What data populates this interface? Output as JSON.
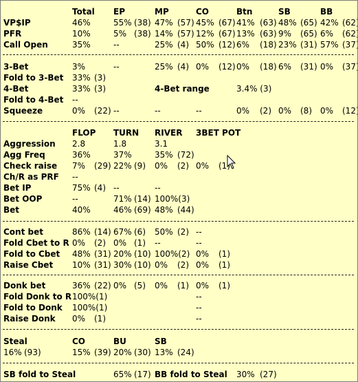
{
  "header": {
    "title": "Total",
    "positions": [
      "EP",
      "MP",
      "CO",
      "Btn",
      "SB",
      "BB"
    ]
  },
  "section1": {
    "rows": [
      {
        "label": "VP$IP",
        "total": "46%",
        "cells": [
          "55%",
          "(38)",
          "47%",
          "(57)",
          "45%",
          "(67)",
          "41%",
          "(63)",
          "48%",
          "(65)",
          "42%",
          "(62)"
        ]
      },
      {
        "label": "PFR",
        "total": "10%",
        "cells": [
          "5%",
          "(38)",
          "14%",
          "(57)",
          "12%",
          "(67)",
          "13%",
          "(63)",
          "9%",
          "(65)",
          "6%",
          "(62)"
        ]
      },
      {
        "label": "Call Open",
        "total": "35%",
        "cells": [
          "--",
          "",
          "25%",
          "(4)",
          "50%",
          "(12)",
          "6%",
          "(18)",
          "23%",
          "(31)",
          "57%",
          "(37)"
        ]
      }
    ]
  },
  "section2": {
    "three_bet": {
      "label": "3-Bet",
      "total": "3%",
      "cells": [
        "--",
        "",
        "25%",
        "(4)",
        "0%",
        "(12)",
        "0%",
        "(18)",
        "6%",
        "(31)",
        "0%",
        "(37)"
      ]
    },
    "fold_to_3bet": {
      "label": "Fold to 3-Bet",
      "value": "33%",
      "count": "(3)"
    },
    "four_bet": {
      "label": "4-Bet",
      "value": "33%",
      "count": "(3)",
      "range_label": "4-Bet range",
      "range_value": "3.4% (3)"
    },
    "fold_to_4bet": {
      "label": "Fold to 4-Bet",
      "value": "--"
    },
    "squeeze": {
      "label": "Squeeze",
      "total": "0%",
      "total_count": "(22)",
      "cells": [
        "--",
        "",
        "--",
        "",
        "--",
        "",
        "0%",
        "(2)",
        "0%",
        "(8)",
        "0%",
        "(12)"
      ]
    }
  },
  "section3": {
    "streets": [
      "FLOP",
      "TURN",
      "RIVER",
      "3BET POT"
    ],
    "rows": [
      {
        "label": "Aggression",
        "cells": [
          "2.8",
          "",
          "1.8",
          "",
          "3.1",
          "",
          "",
          ""
        ]
      },
      {
        "label": "Agg Freq",
        "cells": [
          "36%",
          "",
          "37%",
          "",
          "35%",
          "(72)",
          "",
          ""
        ]
      },
      {
        "label": "Check raise",
        "cells": [
          "7%",
          "(29)",
          "22%",
          "(9)",
          "0%",
          "(2)",
          "0%",
          "(1)"
        ]
      },
      {
        "label": "Ch/R as PRF",
        "cells": [
          "--",
          "",
          "",
          "",
          "",
          "",
          "",
          ""
        ]
      },
      {
        "label": "Bet IP",
        "cells": [
          "75%",
          "(4)",
          "--",
          "",
          "--",
          "",
          "",
          ""
        ]
      },
      {
        "label": "Bet OOP",
        "cells": [
          "--",
          "",
          "71%",
          "(14)",
          "100%(3)",
          "",
          "",
          ""
        ]
      },
      {
        "label": "Bet",
        "bold": false,
        "cells": [
          "40%",
          "",
          "46%",
          "(69)",
          "48%",
          "(44)",
          "",
          ""
        ]
      }
    ]
  },
  "section4": {
    "rows": [
      {
        "label": "Cont bet",
        "cells": [
          "86%",
          "(14)",
          "67%",
          "(6)",
          "50%",
          "(2)",
          "--",
          ""
        ]
      },
      {
        "label": "Fold Cbet to R",
        "cells": [
          "0%",
          "(2)",
          "0%",
          "(1)",
          "--",
          "",
          "--",
          ""
        ]
      },
      {
        "label": "Fold to Cbet",
        "cells": [
          "48%",
          "(31)",
          "20%",
          "(10)",
          "100%(2)",
          "",
          "0%",
          "(1)"
        ]
      },
      {
        "label": "Raise Cbet",
        "cells": [
          "10%",
          "(31)",
          "30%",
          "(10)",
          "0%",
          "(2)",
          "0%",
          "(1)"
        ]
      }
    ]
  },
  "section5": {
    "rows": [
      {
        "label": "Donk bet",
        "cells": [
          "36%",
          "(22)",
          "0%",
          "(5)",
          "0%",
          "(1)",
          "0%",
          "(1)"
        ]
      },
      {
        "label": "Fold Donk to R",
        "cells": [
          "100%(1)",
          "",
          "",
          "",
          "",
          "",
          "--",
          ""
        ]
      },
      {
        "label": "Fold to Donk",
        "cells": [
          "100%(1)",
          "",
          "",
          "",
          "",
          "",
          "--",
          ""
        ]
      },
      {
        "label": "Raise Donk",
        "cells": [
          "0%",
          "(1)",
          "",
          "",
          "",
          "",
          "--",
          ""
        ]
      }
    ]
  },
  "section6": {
    "label": "Steal",
    "positions": [
      "CO",
      "BU",
      "SB"
    ],
    "total": "16%",
    "total_count": "(93)",
    "cells": [
      "15%",
      "(39)",
      "20%",
      "(30)",
      "13%",
      "(24)"
    ]
  },
  "section7": {
    "sb_label": "SB fold to Steal",
    "sb_value": "65%",
    "sb_count": "(17)",
    "bb_label": "BB fold to Steal",
    "bb_value": "30%",
    "bb_count": "(27)"
  }
}
